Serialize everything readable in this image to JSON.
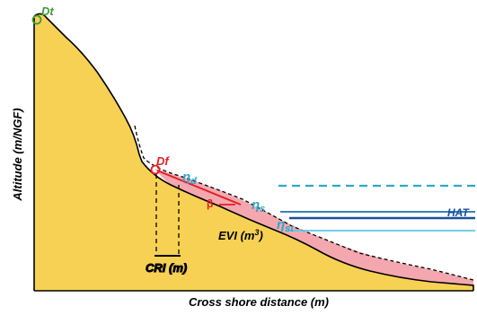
{
  "axes": {
    "ylabel": "Altitude (m/NGF)",
    "xlabel": "Cross shore distance (m)"
  },
  "labels": {
    "dt": "Dt",
    "df": "Df",
    "eta": "η",
    "eta_d_sub": "d",
    "eta_s_sub": "s",
    "eta_st_sub": "st",
    "beta": "β",
    "hat": "HAT",
    "evi": "EVI (m",
    "evi_sup": "3",
    "evi_close": ")",
    "cri": "CRI (m)"
  },
  "colors": {
    "beach": "#F7D154",
    "volume": "#F4A7AE",
    "eta_d": "#29A9CF",
    "eta_s": "#1C6FB5",
    "eta_st": "#5DC9E4",
    "hat": "#1B4F9C",
    "dt_marker": "#3E9A35",
    "df_marker": "#E21F26",
    "slope_line": "#E21F26",
    "outline": "#000000"
  }
}
